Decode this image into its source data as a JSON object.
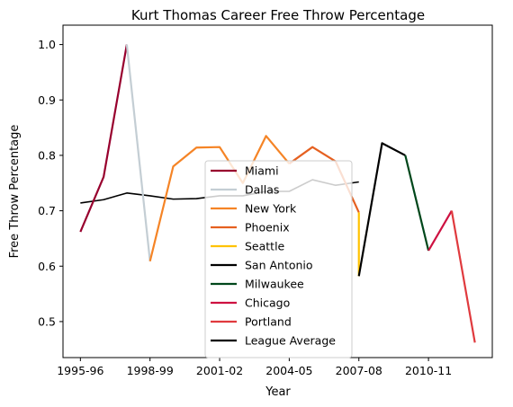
{
  "chart_data": {
    "type": "line",
    "title": "Kurt Thomas  Career Free Throw Percentage",
    "xlabel": "Year",
    "ylabel": "Free Throw Percentage",
    "xlim": [
      -0.75,
      17.75
    ],
    "ylim": [
      0.435,
      1.035
    ],
    "x_ticks": [
      {
        "pos": 0,
        "label": "1995-96"
      },
      {
        "pos": 3,
        "label": "1998-99"
      },
      {
        "pos": 6,
        "label": "2001-02"
      },
      {
        "pos": 9,
        "label": "2004-05"
      },
      {
        "pos": 12,
        "label": "2007-08"
      },
      {
        "pos": 15,
        "label": "2010-11"
      }
    ],
    "y_ticks": [
      0.5,
      0.6,
      0.7,
      0.8,
      0.9,
      1.0
    ],
    "grid": false,
    "legend_position": "center-bottom",
    "series": [
      {
        "name": "Miami",
        "color": "#98002E",
        "points": [
          [
            0,
            0.662
          ],
          [
            1,
            0.761
          ],
          [
            2,
            1.0
          ]
        ]
      },
      {
        "name": "Dallas",
        "color": "#C4CED4",
        "points": [
          [
            2,
            1.0
          ],
          [
            3,
            0.609
          ]
        ]
      },
      {
        "name": "New York",
        "color": "#F58426",
        "points": [
          [
            3,
            0.609
          ],
          [
            4,
            0.78
          ],
          [
            5,
            0.814
          ],
          [
            6,
            0.815
          ],
          [
            7,
            0.75
          ],
          [
            8,
            0.835
          ],
          [
            9,
            0.785
          ]
        ]
      },
      {
        "name": "Phoenix",
        "color": "#E56020",
        "points": [
          [
            9,
            0.785
          ],
          [
            10,
            0.815
          ],
          [
            11,
            0.789
          ],
          [
            12,
            0.697
          ]
        ]
      },
      {
        "name": "Seattle",
        "color": "#FFC200",
        "points": [
          [
            12,
            0.697
          ],
          [
            12,
            0.582
          ]
        ]
      },
      {
        "name": "San Antonio",
        "color": "#000000",
        "points": [
          [
            12,
            0.582
          ],
          [
            13,
            0.822
          ],
          [
            14,
            0.8
          ]
        ]
      },
      {
        "name": "Milwaukee",
        "color": "#00471B",
        "points": [
          [
            14,
            0.8
          ],
          [
            15,
            0.628
          ]
        ]
      },
      {
        "name": "Chicago",
        "color": "#CE1141",
        "points": [
          [
            15,
            0.628
          ],
          [
            16,
            0.7
          ]
        ]
      },
      {
        "name": "Portland",
        "color": "#E03A3E",
        "points": [
          [
            16,
            0.7
          ],
          [
            17,
            0.462
          ]
        ]
      },
      {
        "name": "League Average",
        "color": "#000000",
        "points": [
          [
            0,
            0.714
          ],
          [
            1,
            0.72
          ],
          [
            2,
            0.732
          ],
          [
            3,
            0.727
          ],
          [
            4,
            0.721
          ],
          [
            5,
            0.722
          ],
          [
            6,
            0.727
          ],
          [
            7,
            0.727
          ],
          [
            8,
            0.735
          ],
          [
            9,
            0.735
          ],
          [
            10,
            0.756
          ],
          [
            11,
            0.746
          ],
          [
            12,
            0.752
          ]
        ]
      }
    ]
  }
}
